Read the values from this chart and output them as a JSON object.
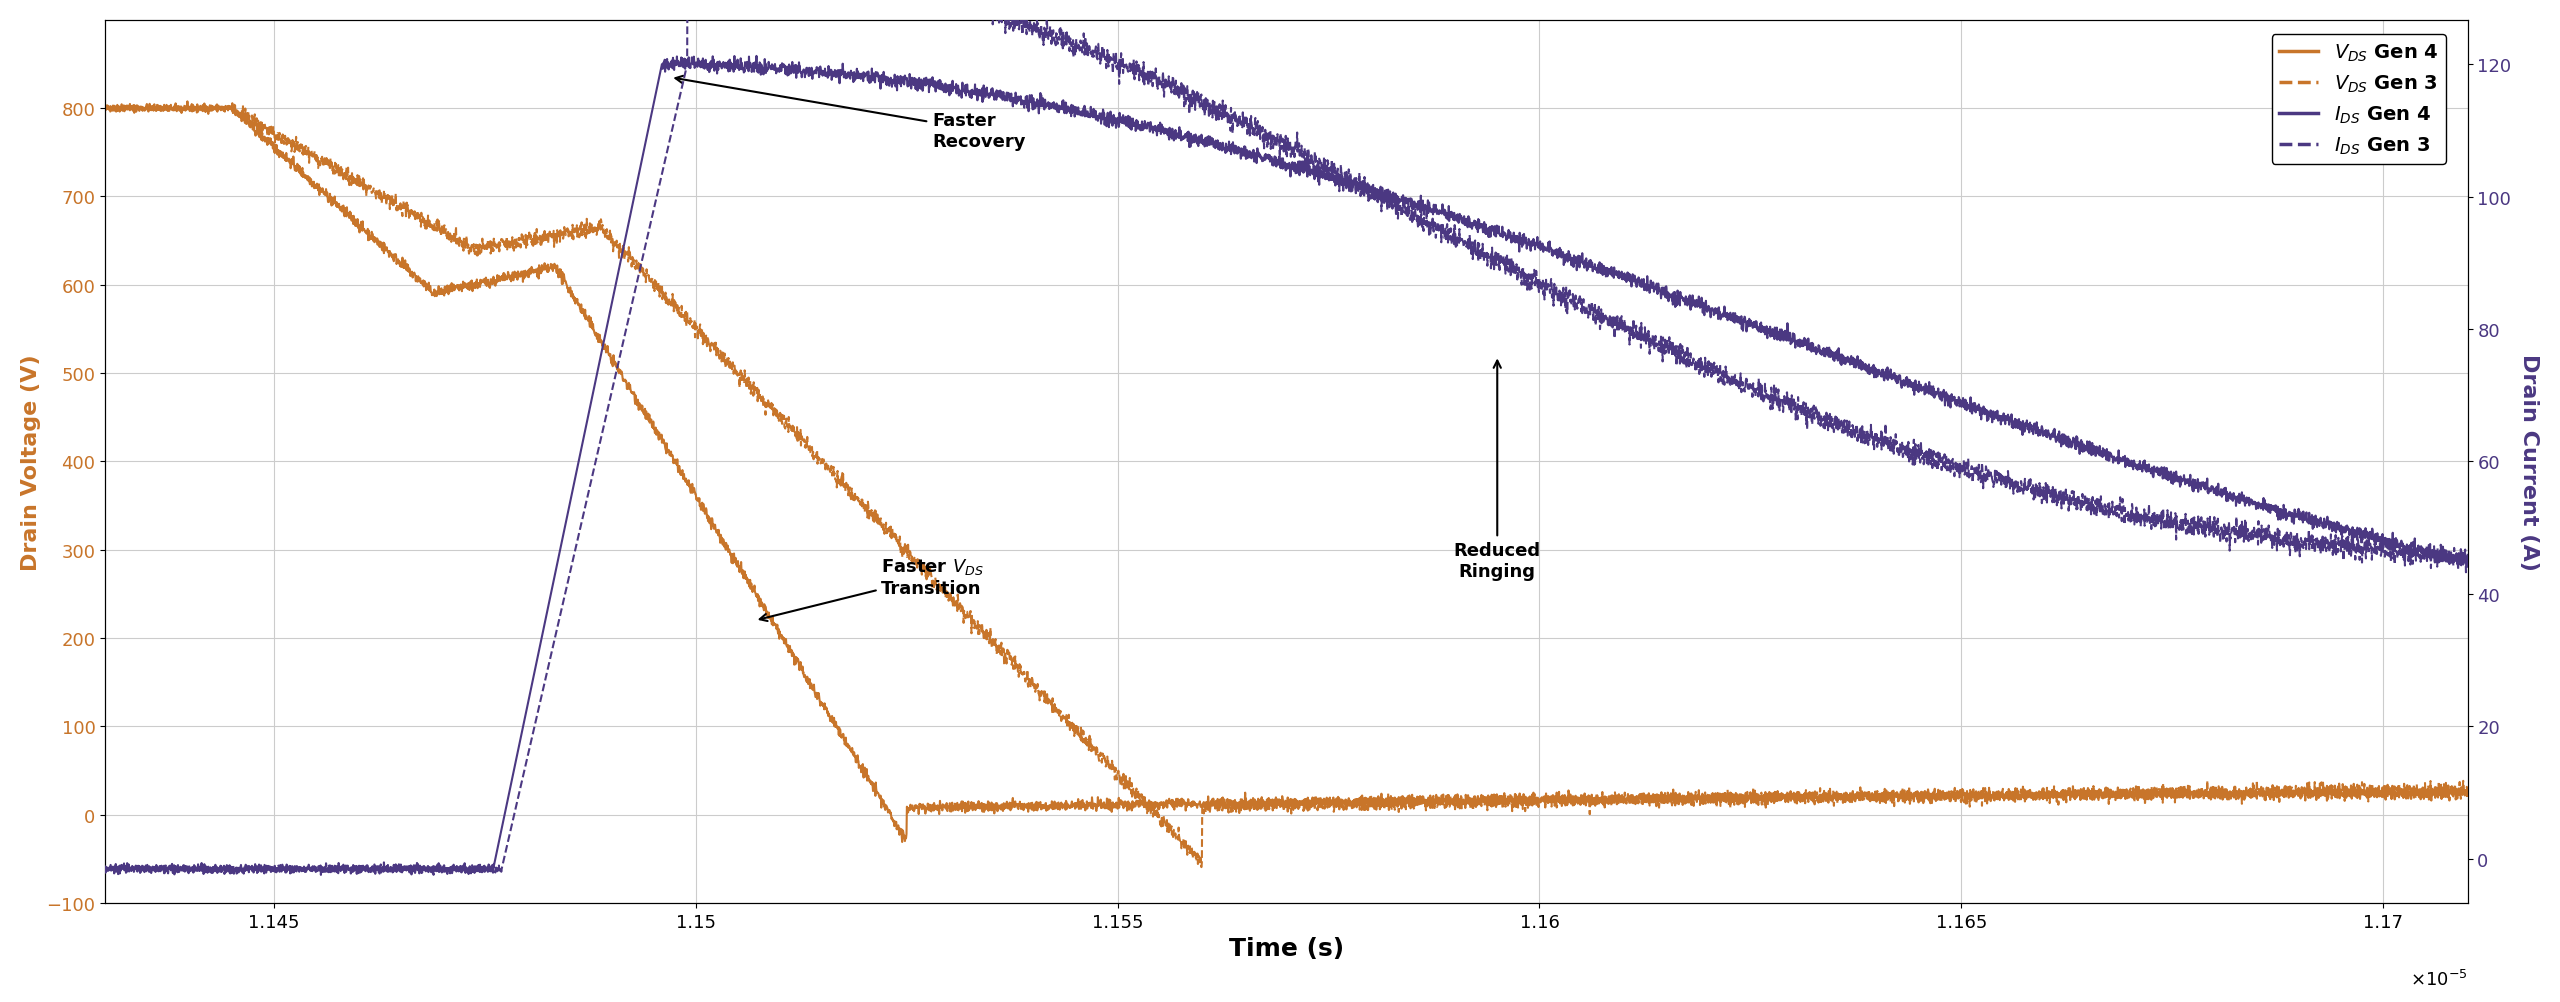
{
  "title": "",
  "xlabel": "Time (s)",
  "ylabel_left": "Drain Voltage (V)",
  "ylabel_right": "Drain Current (A)",
  "xlim": [
    1.143e-05,
    1.171e-05
  ],
  "ylim_left": [
    -100,
    900
  ],
  "ylim_right": [
    -6.67,
    126.67
  ],
  "xticks": [
    1.145e-05,
    1.15e-05,
    1.155e-05,
    1.16e-05,
    1.165e-05,
    1.17e-05
  ],
  "xtick_labels": [
    "1.145",
    "1.15",
    "1.155",
    "1.16",
    "1.165",
    "1.17"
  ],
  "yticks_left": [
    -100,
    0,
    100,
    200,
    300,
    400,
    500,
    600,
    700,
    800
  ],
  "yticks_right": [
    0,
    20,
    40,
    60,
    80,
    100,
    120
  ],
  "color_vds": "#C8752A",
  "color_ids": "#4B3882",
  "background_color": "#ffffff",
  "grid_color": "#cccccc",
  "legend_labels": [
    "$V_{DS}$ Gen 4",
    "$V_{DS}$ Gen 3",
    "$I_{DS}$ Gen 4",
    "$I_{DS}$ Gen 3"
  ],
  "figsize": [
    25.6,
    10.03
  ],
  "dpi": 100
}
